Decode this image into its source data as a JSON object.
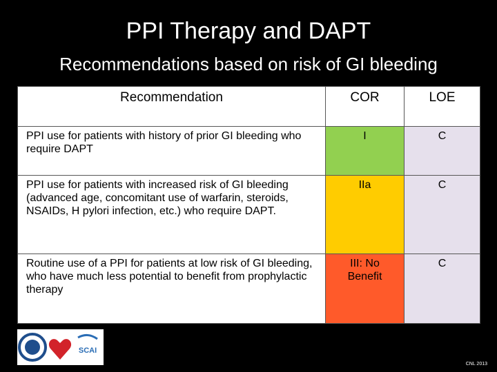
{
  "header": {
    "title": "PPI Therapy and DAPT",
    "subtitle": "Recommendations based on risk of GI bleeding"
  },
  "table": {
    "columns": [
      "Recommendation",
      "COR",
      "LOE"
    ],
    "rows": [
      [
        "PPI use for patients with history of prior GI bleeding who require DAPT",
        "I",
        "C"
      ],
      [
        "PPI use for patients with increased risk of GI bleeding (advanced age, concomitant use of warfarin, steroids, NSAIDs, H pylori infection, etc.) who require DAPT.",
        "IIa",
        "C"
      ],
      [
        "Routine use of a PPI for patients at low risk of GI bleeding, who have much less potential to benefit from prophylactic therapy",
        "III: No Benefit",
        "C"
      ]
    ]
  },
  "logo_text": "SCAI",
  "footnote": "CNL 2013"
}
